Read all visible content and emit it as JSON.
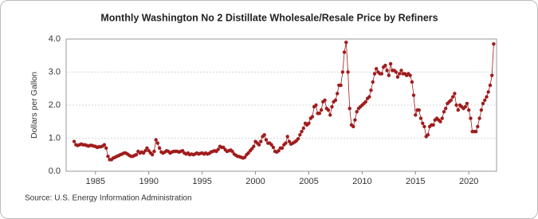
{
  "chart_data": {
    "type": "line",
    "title": "Monthly Washington No 2 Distillate Wholesale/Resale Price by Refiners",
    "y_label": "Dollars per Gallon",
    "source": "Source: U.S. Energy Information Administration",
    "xlim": [
      1982.25,
      2022.6
    ],
    "xticks": [
      1985,
      1990,
      1995,
      2000,
      2005,
      2010,
      2015,
      2020
    ],
    "ylim": [
      0,
      4
    ],
    "yticks": [
      {
        "value": 0,
        "label": "0.0"
      },
      {
        "value": 1,
        "label": "1.0"
      },
      {
        "value": 2,
        "label": "2.0"
      },
      {
        "value": 3,
        "label": "3.0"
      },
      {
        "value": 4,
        "label": "4.0"
      }
    ],
    "grid": true,
    "x": [
      1983,
      1983.17,
      1983.33,
      1983.5,
      1983.67,
      1983.83,
      1984,
      1984.17,
      1984.33,
      1984.5,
      1984.67,
      1984.83,
      1985,
      1985.17,
      1985.33,
      1985.5,
      1985.67,
      1985.83,
      1986,
      1986.17,
      1986.33,
      1986.5,
      1986.67,
      1986.83,
      1987,
      1987.17,
      1987.33,
      1987.5,
      1987.67,
      1987.83,
      1988,
      1988.17,
      1988.33,
      1988.5,
      1988.67,
      1988.83,
      1989,
      1989.17,
      1989.33,
      1989.5,
      1989.67,
      1989.83,
      1990,
      1990.17,
      1990.33,
      1990.5,
      1990.67,
      1990.83,
      1991,
      1991.17,
      1991.33,
      1991.5,
      1991.67,
      1991.83,
      1992,
      1992.17,
      1992.33,
      1992.5,
      1992.67,
      1992.83,
      1993,
      1993.17,
      1993.33,
      1993.5,
      1993.67,
      1993.83,
      1994,
      1994.17,
      1994.33,
      1994.5,
      1994.67,
      1994.83,
      1995,
      1995.17,
      1995.33,
      1995.5,
      1995.67,
      1995.83,
      1996,
      1996.17,
      1996.33,
      1996.5,
      1996.67,
      1996.83,
      1997,
      1997.17,
      1997.33,
      1997.5,
      1997.67,
      1997.83,
      1998,
      1998.17,
      1998.33,
      1998.5,
      1998.67,
      1998.83,
      1999,
      1999.17,
      1999.33,
      1999.5,
      1999.67,
      1999.83,
      2000,
      2000.17,
      2000.33,
      2000.5,
      2000.67,
      2000.83,
      2001,
      2001.17,
      2001.33,
      2001.5,
      2001.67,
      2001.83,
      2002,
      2002.17,
      2002.33,
      2002.5,
      2002.67,
      2002.83,
      2003,
      2003.17,
      2003.33,
      2003.5,
      2003.67,
      2003.83,
      2004,
      2004.17,
      2004.33,
      2004.5,
      2004.67,
      2004.83,
      2005,
      2005.17,
      2005.33,
      2005.5,
      2005.67,
      2005.83,
      2006,
      2006.17,
      2006.33,
      2006.5,
      2006.67,
      2006.83,
      2007,
      2007.17,
      2007.33,
      2007.5,
      2007.67,
      2007.83,
      2008,
      2008.17,
      2008.33,
      2008.5,
      2008.67,
      2008.83,
      2009,
      2009.17,
      2009.33,
      2009.5,
      2009.67,
      2009.83,
      2010,
      2010.17,
      2010.33,
      2010.5,
      2010.67,
      2010.83,
      2011,
      2011.17,
      2011.33,
      2011.5,
      2011.67,
      2011.83,
      2012,
      2012.17,
      2012.33,
      2012.5,
      2012.67,
      2012.83,
      2013,
      2013.17,
      2013.33,
      2013.5,
      2013.67,
      2013.83,
      2014,
      2014.17,
      2014.33,
      2014.5,
      2014.67,
      2014.83,
      2015,
      2015.17,
      2015.33,
      2015.5,
      2015.67,
      2015.83,
      2016,
      2016.17,
      2016.33,
      2016.5,
      2016.67,
      2016.83,
      2017,
      2017.17,
      2017.33,
      2017.5,
      2017.67,
      2017.83,
      2018,
      2018.17,
      2018.33,
      2018.5,
      2018.67,
      2018.83,
      2019,
      2019.17,
      2019.33,
      2019.5,
      2019.67,
      2019.83,
      2020,
      2020.17,
      2020.33,
      2020.5,
      2020.67,
      2020.83,
      2021,
      2021.17,
      2021.33,
      2021.5,
      2021.67,
      2021.83,
      2022,
      2022.17,
      2022.33
    ],
    "series": [
      {
        "color": "#a01c1c",
        "values": [
          0.9,
          0.8,
          0.78,
          0.8,
          0.82,
          0.8,
          0.8,
          0.78,
          0.76,
          0.78,
          0.78,
          0.76,
          0.75,
          0.72,
          0.74,
          0.74,
          0.76,
          0.8,
          0.7,
          0.45,
          0.35,
          0.35,
          0.4,
          0.42,
          0.45,
          0.47,
          0.5,
          0.52,
          0.55,
          0.55,
          0.52,
          0.48,
          0.45,
          0.45,
          0.48,
          0.5,
          0.6,
          0.55,
          0.58,
          0.55,
          0.62,
          0.7,
          0.62,
          0.55,
          0.5,
          0.6,
          0.95,
          0.85,
          0.7,
          0.58,
          0.55,
          0.58,
          0.62,
          0.6,
          0.55,
          0.58,
          0.6,
          0.6,
          0.6,
          0.58,
          0.6,
          0.62,
          0.55,
          0.52,
          0.55,
          0.5,
          0.52,
          0.5,
          0.52,
          0.55,
          0.52,
          0.54,
          0.55,
          0.52,
          0.55,
          0.52,
          0.54,
          0.58,
          0.6,
          0.62,
          0.6,
          0.66,
          0.75,
          0.72,
          0.72,
          0.65,
          0.6,
          0.62,
          0.64,
          0.6,
          0.52,
          0.48,
          0.45,
          0.44,
          0.42,
          0.4,
          0.42,
          0.5,
          0.55,
          0.62,
          0.68,
          0.75,
          0.9,
          0.85,
          0.8,
          0.9,
          1.05,
          1.1,
          0.95,
          0.85,
          0.85,
          0.8,
          0.72,
          0.6,
          0.58,
          0.62,
          0.7,
          0.7,
          0.8,
          0.85,
          1.05,
          0.9,
          0.82,
          0.85,
          0.88,
          0.92,
          0.98,
          1.1,
          1.2,
          1.3,
          1.45,
          1.4,
          1.45,
          1.6,
          1.65,
          1.95,
          2.0,
          1.75,
          1.75,
          1.85,
          2.1,
          2.15,
          1.9,
          1.85,
          1.7,
          1.95,
          2.1,
          2.15,
          2.35,
          2.6,
          2.6,
          3.0,
          3.6,
          3.9,
          3.0,
          1.9,
          1.4,
          1.35,
          1.55,
          1.8,
          1.9,
          1.95,
          2.0,
          2.05,
          2.1,
          2.2,
          2.25,
          2.45,
          2.7,
          2.95,
          3.1,
          3.0,
          2.95,
          2.95,
          3.15,
          3.2,
          3.05,
          2.9,
          3.25,
          3.05,
          3.05,
          3.0,
          2.85,
          2.95,
          3.05,
          2.95,
          2.95,
          2.9,
          2.95,
          2.9,
          2.7,
          2.3,
          1.7,
          1.85,
          1.85,
          1.6,
          1.45,
          1.35,
          1.05,
          1.1,
          1.35,
          1.4,
          1.4,
          1.55,
          1.6,
          1.55,
          1.5,
          1.6,
          1.8,
          1.9,
          2.05,
          2.1,
          2.15,
          2.25,
          2.35,
          2.0,
          1.85,
          2.0,
          1.95,
          1.9,
          1.95,
          2.05,
          1.85,
          1.6,
          1.2,
          1.2,
          1.2,
          1.35,
          1.6,
          1.85,
          2.05,
          2.15,
          2.25,
          2.4,
          2.6,
          2.9,
          3.85
        ]
      }
    ]
  }
}
